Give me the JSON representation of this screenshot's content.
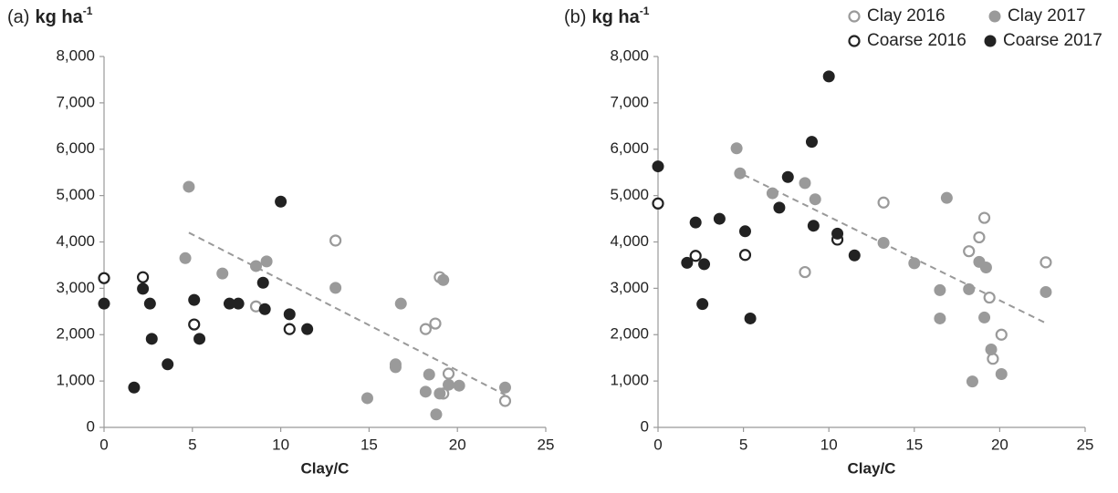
{
  "chart_data": [
    {
      "type": "scatter",
      "panel_label": "(a)",
      "y_unit": "kg ha",
      "y_unit_sup": "-1",
      "x_label": "Clay/C",
      "xlim": [
        0,
        25
      ],
      "xticks": [
        0,
        5,
        10,
        15,
        20,
        25
      ],
      "ylim": [
        0,
        8000
      ],
      "yticks": [
        0,
        {
          "value": 1000,
          "label": "1,000"
        },
        {
          "value": 2000,
          "label": "2,000"
        },
        {
          "value": 3000,
          "label": "3,000"
        },
        {
          "value": 4000,
          "label": "4,000"
        },
        {
          "value": 5000,
          "label": "5,000"
        },
        {
          "value": 6000,
          "label": "6,000"
        },
        {
          "value": 7000,
          "label": "7,000"
        },
        {
          "value": 8000,
          "label": "8,000"
        }
      ],
      "legend": false,
      "series": [
        {
          "name": "Clay 2016",
          "color": "#9a9a9a",
          "marker": "open",
          "x": [
            8.6,
            13.1,
            18.2,
            18.75,
            19.0,
            19.5,
            19.2,
            22.7
          ],
          "values": [
            2610,
            4030,
            2120,
            2240,
            3240,
            1160,
            730,
            570
          ]
        },
        {
          "name": "Clay 2017",
          "color": "#9a9a9a",
          "marker": "filled",
          "x": [
            4.8,
            4.6,
            6.7,
            8.6,
            9.2,
            13.1,
            16.8,
            16.5,
            16.5,
            14.9,
            18.4,
            18.2,
            18.8,
            19.0,
            19.5,
            20.1,
            19.2,
            22.7
          ],
          "values": [
            5190,
            3650,
            3320,
            3480,
            3580,
            3010,
            2670,
            1360,
            1300,
            630,
            1140,
            770,
            280,
            730,
            920,
            900,
            3180,
            860
          ]
        },
        {
          "name": "Coarse 2016",
          "color": "#222222",
          "marker": "open",
          "x": [
            0,
            2.2,
            5.1,
            10.5
          ],
          "values": [
            3220,
            3240,
            2220,
            2120
          ]
        },
        {
          "name": "Coarse 2017",
          "color": "#222222",
          "marker": "filled",
          "x": [
            0,
            1.7,
            2.2,
            2.6,
            2.7,
            3.6,
            5.1,
            5.4,
            7.1,
            7.6,
            9.0,
            9.1,
            10.0,
            10.5,
            11.5
          ],
          "values": [
            2670,
            860,
            2990,
            2670,
            1910,
            1360,
            2750,
            1910,
            2670,
            2670,
            3120,
            2550,
            4870,
            2440,
            2120
          ]
        }
      ],
      "trend": {
        "color": "#999999",
        "x": [
          4.8,
          22.7
        ],
        "values": [
          4200,
          700
        ]
      }
    },
    {
      "type": "scatter",
      "panel_label": "(b)",
      "y_unit": "kg ha",
      "y_unit_sup": "-1",
      "x_label": "Clay/C",
      "xlim": [
        0,
        25
      ],
      "xticks": [
        0,
        5,
        10,
        15,
        20,
        25
      ],
      "ylim": [
        0,
        8000
      ],
      "yticks": [
        0,
        {
          "value": 1000,
          "label": "1,000"
        },
        {
          "value": 2000,
          "label": "2,000"
        },
        {
          "value": 3000,
          "label": "3,000"
        },
        {
          "value": 4000,
          "label": "4,000"
        },
        {
          "value": 5000,
          "label": "5,000"
        },
        {
          "value": 6000,
          "label": "6,000"
        },
        {
          "value": 7000,
          "label": "7,000"
        },
        {
          "value": 8000,
          "label": "8,000"
        }
      ],
      "legend": "top-right",
      "series": [
        {
          "name": "Clay 2016",
          "color": "#9a9a9a",
          "marker": "open",
          "x": [
            8.6,
            13.2,
            18.2,
            18.8,
            19.1,
            19.4,
            19.6,
            20.1,
            22.7
          ],
          "values": [
            3350,
            4850,
            3800,
            4100,
            4520,
            2800,
            1480,
            2000,
            3560
          ]
        },
        {
          "name": "Clay 2017",
          "color": "#9a9a9a",
          "marker": "filled",
          "x": [
            4.6,
            4.8,
            6.7,
            8.6,
            9.2,
            13.2,
            15.0,
            16.5,
            16.5,
            16.9,
            18.2,
            18.4,
            18.8,
            19.1,
            19.2,
            19.5,
            20.1,
            22.7
          ],
          "values": [
            6020,
            5480,
            5050,
            5270,
            4920,
            3980,
            3540,
            2960,
            2350,
            4950,
            2980,
            990,
            3570,
            2370,
            3450,
            1680,
            1150,
            2920
          ]
        },
        {
          "name": "Coarse 2016",
          "color": "#222222",
          "marker": "open",
          "x": [
            0,
            2.2,
            5.1,
            10.5
          ],
          "values": [
            4830,
            3700,
            3720,
            4050
          ]
        },
        {
          "name": "Coarse 2017",
          "color": "#222222",
          "marker": "filled",
          "x": [
            0,
            1.7,
            2.2,
            2.6,
            2.7,
            3.6,
            5.1,
            5.4,
            7.1,
            7.6,
            9.0,
            9.1,
            10.0,
            10.5,
            11.5
          ],
          "values": [
            5630,
            3550,
            4420,
            2660,
            3520,
            4500,
            4230,
            2350,
            4740,
            5400,
            6160,
            4350,
            7570,
            4180,
            3710
          ]
        }
      ],
      "trend": {
        "color": "#999999",
        "x": [
          5,
          22.7
        ],
        "values": [
          5450,
          2250
        ]
      }
    }
  ]
}
